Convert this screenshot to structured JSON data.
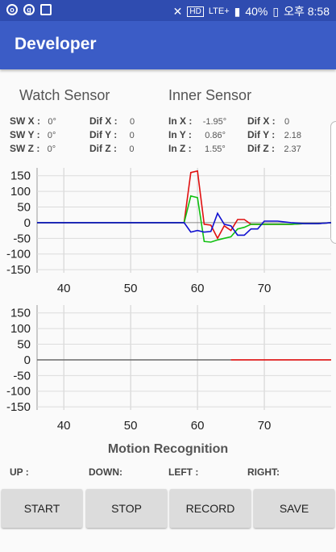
{
  "status": {
    "battery": "40%",
    "time": "오후 8:58",
    "network": "LTE+",
    "hd": "HD"
  },
  "app": {
    "title": "Developer"
  },
  "watch": {
    "title": "Watch Sensor",
    "rows": [
      {
        "label": "SW X :",
        "value": "0°",
        "dif_label": "Dif X :",
        "dif_value": "0"
      },
      {
        "label": "SW Y :",
        "value": "0°",
        "dif_label": "Dif Y :",
        "dif_value": "0"
      },
      {
        "label": "SW Z :",
        "value": "0°",
        "dif_label": "Dif Z :",
        "dif_value": "0"
      }
    ]
  },
  "inner": {
    "title": "Inner Sensor",
    "rows": [
      {
        "label": "In X :",
        "value": "-1.95°",
        "dif_label": "Dif X :",
        "dif_value": "0"
      },
      {
        "label": "In Y :",
        "value": "0.86°",
        "dif_label": "Dif Y :",
        "dif_value": "2.18"
      },
      {
        "label": "In Z :",
        "value": "1.55°",
        "dif_label": "Dif Z :",
        "dif_value": "2.37"
      }
    ]
  },
  "chart_data": [
    {
      "type": "line",
      "xlim": [
        36,
        80
      ],
      "ylim": [
        -160,
        175
      ],
      "x_ticks": [
        "40",
        "50",
        "60",
        "70"
      ],
      "y_ticks": [
        "150",
        "100",
        "50",
        "0",
        "-50",
        "-100",
        "-150"
      ],
      "grid": true,
      "series": [
        {
          "color": "#e01010",
          "x": [
            36,
            58,
            59,
            60,
            61,
            62,
            63,
            64,
            65,
            66,
            67,
            68,
            69,
            70,
            72,
            74,
            76,
            78,
            80
          ],
          "y": [
            0,
            0,
            160,
            165,
            -5,
            -8,
            -50,
            -10,
            -25,
            10,
            10,
            -5,
            -5,
            -5,
            -5,
            -5,
            -3,
            -3,
            0
          ]
        },
        {
          "color": "#10c010",
          "x": [
            36,
            58,
            59,
            60,
            61,
            62,
            63,
            64,
            65,
            66,
            67,
            68,
            69,
            70,
            72,
            74,
            76,
            78,
            80
          ],
          "y": [
            0,
            0,
            85,
            80,
            -60,
            -62,
            -55,
            -50,
            -45,
            -20,
            -15,
            -5,
            -5,
            -5,
            -5,
            -5,
            -3,
            -3,
            0
          ]
        },
        {
          "color": "#1010d0",
          "x": [
            36,
            58,
            59,
            60,
            61,
            62,
            63,
            64,
            65,
            66,
            67,
            68,
            69,
            70,
            72,
            74,
            76,
            78,
            80
          ],
          "y": [
            0,
            0,
            -30,
            -25,
            -30,
            -28,
            30,
            -5,
            -10,
            -40,
            -40,
            -20,
            -20,
            5,
            5,
            0,
            -3,
            -3,
            0
          ]
        }
      ]
    },
    {
      "type": "line",
      "xlim": [
        36,
        80
      ],
      "ylim": [
        -160,
        175
      ],
      "x_ticks": [
        "40",
        "50",
        "60",
        "70"
      ],
      "y_ticks": [
        "150",
        "100",
        "50",
        "0",
        "-50",
        "-100",
        "-150"
      ],
      "grid": true,
      "series": [
        {
          "color": "#777777",
          "x": [
            36,
            65
          ],
          "y": [
            0,
            0
          ]
        },
        {
          "color": "#e01010",
          "x": [
            65,
            80
          ],
          "y": [
            0,
            0
          ]
        }
      ]
    }
  ],
  "motion": {
    "title": "Motion Recognition",
    "up": "UP :",
    "down": "DOWN:",
    "left": "LEFT :",
    "right": "RIGHT:"
  },
  "buttons": {
    "start": "START",
    "stop": "STOP",
    "record": "RECORD",
    "save": "SAVE"
  }
}
